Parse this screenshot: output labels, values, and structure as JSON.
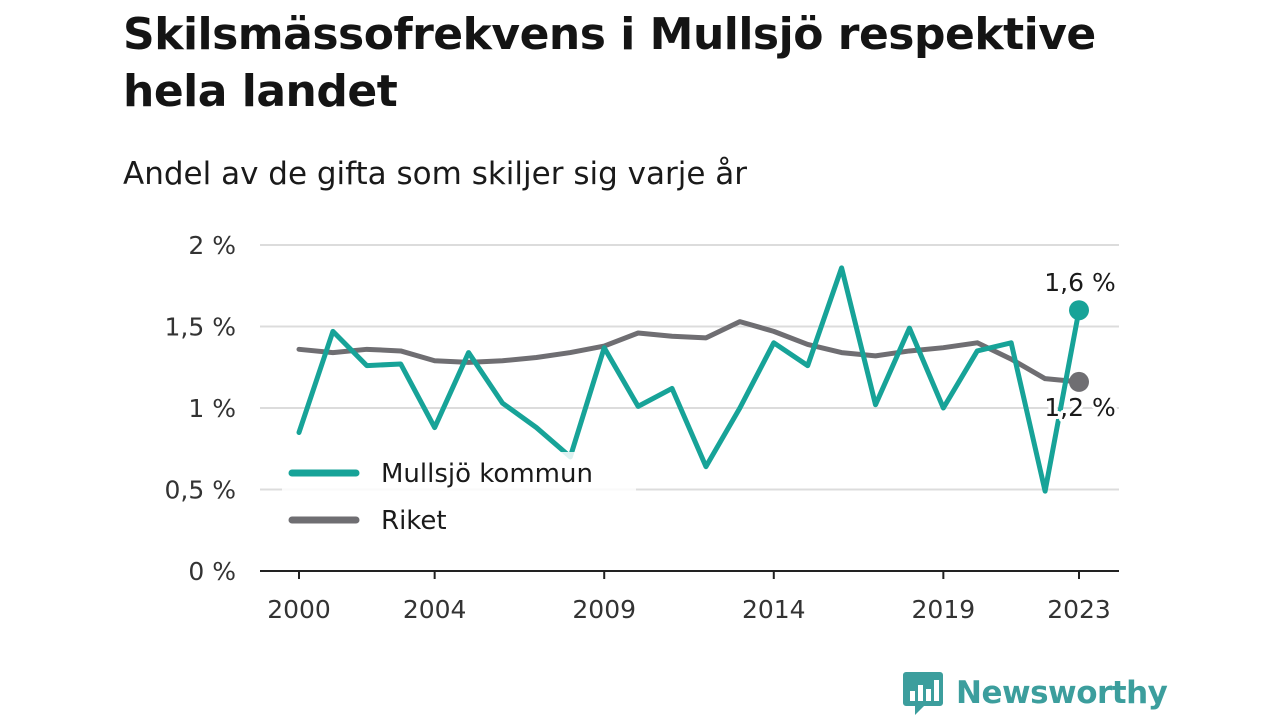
{
  "title": "Skilsmässofrekvens i Mullsjö respektive hela landet",
  "subtitle": "Andel av de gifta som skiljer sig varje år",
  "brand": {
    "name": "Newsworthy",
    "color": "#3c9e9d"
  },
  "chart_data": {
    "type": "line",
    "x": [
      2000,
      2001,
      2002,
      2003,
      2004,
      2005,
      2006,
      2007,
      2008,
      2009,
      2010,
      2011,
      2012,
      2013,
      2014,
      2015,
      2016,
      2017,
      2018,
      2019,
      2020,
      2021,
      2022,
      2023
    ],
    "x_ticks": [
      {
        "value": 2000,
        "label": "2000"
      },
      {
        "value": 2004,
        "label": "2004"
      },
      {
        "value": 2009,
        "label": "2009"
      },
      {
        "value": 2014,
        "label": "2014"
      },
      {
        "value": 2019,
        "label": "2019"
      },
      {
        "value": 2023,
        "label": "2023"
      }
    ],
    "y_ticks": [
      {
        "value": 0,
        "label": "0 %"
      },
      {
        "value": 0.5,
        "label": "0,5 %"
      },
      {
        "value": 1,
        "label": "1 %"
      },
      {
        "value": 1.5,
        "label": "1,5 %"
      },
      {
        "value": 2,
        "label": "2 %"
      }
    ],
    "ylim": [
      0,
      2
    ],
    "xlim": [
      2000,
      2023
    ],
    "grid": true,
    "legend_position": "bottom-left",
    "series": [
      {
        "name": "Mullsjö kommun",
        "color": "#17a398",
        "values": [
          0.85,
          1.47,
          1.26,
          1.27,
          0.88,
          1.34,
          1.03,
          0.88,
          0.7,
          1.37,
          1.01,
          1.12,
          0.64,
          1.0,
          1.4,
          1.26,
          1.86,
          1.02,
          1.49,
          1.0,
          1.35,
          1.4,
          0.49,
          1.6
        ],
        "end_label": "1,6 %"
      },
      {
        "name": "Riket",
        "color": "#6f6e72",
        "values": [
          1.36,
          1.34,
          1.36,
          1.35,
          1.29,
          1.28,
          1.29,
          1.31,
          1.34,
          1.38,
          1.46,
          1.44,
          1.43,
          1.53,
          1.47,
          1.39,
          1.34,
          1.32,
          1.35,
          1.37,
          1.4,
          1.3,
          1.18,
          1.16
        ],
        "end_label": "1,2 %"
      }
    ]
  }
}
